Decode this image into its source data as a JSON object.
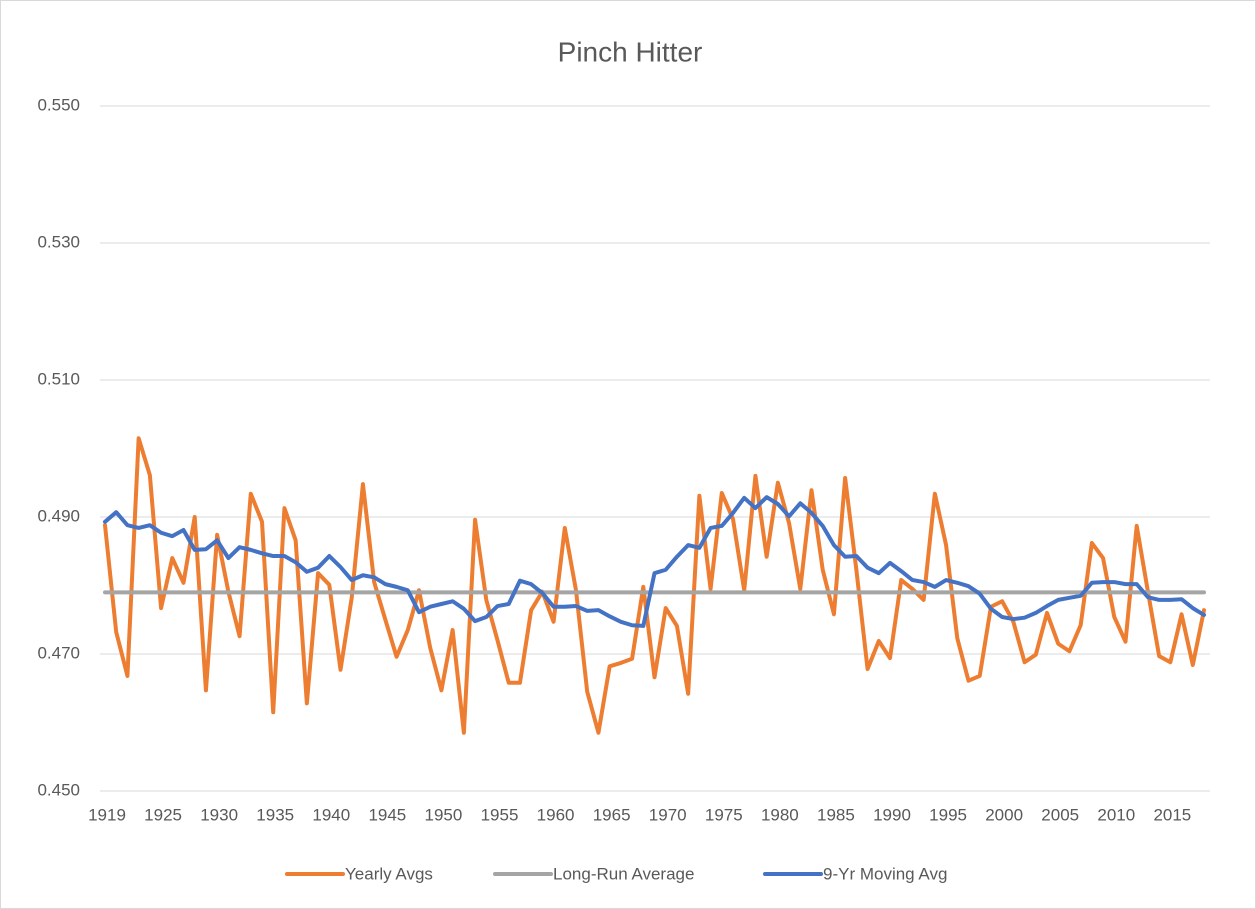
{
  "chart_data": {
    "type": "line",
    "title": "Pinch Hitter",
    "categories": [
      "1919",
      null,
      null,
      null,
      null,
      "1925",
      null,
      null,
      null,
      null,
      "1930",
      null,
      null,
      null,
      null,
      "1935",
      null,
      null,
      null,
      null,
      "1940",
      null,
      null,
      null,
      null,
      "1945",
      null,
      null,
      null,
      null,
      "1950",
      null,
      null,
      null,
      null,
      "1955",
      null,
      null,
      null,
      null,
      "1960",
      null,
      null,
      null,
      null,
      "1965",
      null,
      null,
      null,
      null,
      "1970",
      null,
      null,
      null,
      null,
      "1975",
      null,
      null,
      null,
      null,
      "1980",
      null,
      null,
      null,
      null,
      "1985",
      null,
      null,
      null,
      null,
      "1990",
      null,
      null,
      null,
      null,
      "1995",
      null,
      null,
      null,
      null,
      "2000",
      null,
      null,
      null,
      null,
      "2005",
      null,
      null,
      null,
      null,
      "2010",
      null,
      null,
      null,
      null,
      "2015",
      null,
      null,
      null
    ],
    "series": [
      {
        "name": "Yearly Avgs",
        "color": "#ed7d31",
        "values": [
          0.4888,
          0.4732,
          0.4668,
          0.5015,
          0.4961,
          0.4767,
          0.484,
          0.4804,
          0.49,
          0.4647,
          0.4874,
          0.4791,
          0.4726,
          0.4934,
          0.4893,
          0.4615,
          0.4913,
          0.4866,
          0.4628,
          0.4818,
          0.4801,
          0.4677,
          0.4782,
          0.4948,
          0.4805,
          0.475,
          0.4696,
          0.4735,
          0.4793,
          0.4709,
          0.4647,
          0.4735,
          0.4585,
          0.4896,
          0.4779,
          0.472,
          0.4658,
          0.4658,
          0.4764,
          0.4791,
          0.4747,
          0.4884,
          0.4793,
          0.4645,
          0.4585,
          0.4682,
          0.4687,
          0.4693,
          0.4798,
          0.4666,
          0.4767,
          0.4741,
          0.4642,
          0.4931,
          0.4795,
          0.4935,
          0.4897,
          0.4793,
          0.496,
          0.4842,
          0.495,
          0.4891,
          0.4795,
          0.4939,
          0.4823,
          0.4758,
          0.4957,
          0.4823,
          0.4678,
          0.4719,
          0.4694,
          0.4808,
          0.4795,
          0.4779,
          0.4934,
          0.4859,
          0.4723,
          0.4661,
          0.4668,
          0.4769,
          0.4777,
          0.4747,
          0.4688,
          0.4699,
          0.476,
          0.4715,
          0.4704,
          0.4742,
          0.4862,
          0.484,
          0.4754,
          0.4718,
          0.4887,
          0.4791,
          0.4697,
          0.4688,
          0.4758,
          0.4684,
          0.4764
        ]
      },
      {
        "name": "Long-Run Average",
        "color": "#a5a5a5",
        "values": [
          0.479,
          0.479,
          0.479,
          0.479,
          0.479,
          0.479,
          0.479,
          0.479,
          0.479,
          0.479,
          0.479,
          0.479,
          0.479,
          0.479,
          0.479,
          0.479,
          0.479,
          0.479,
          0.479,
          0.479,
          0.479,
          0.479,
          0.479,
          0.479,
          0.479,
          0.479,
          0.479,
          0.479,
          0.479,
          0.479,
          0.479,
          0.479,
          0.479,
          0.479,
          0.479,
          0.479,
          0.479,
          0.479,
          0.479,
          0.479,
          0.479,
          0.479,
          0.479,
          0.479,
          0.479,
          0.479,
          0.479,
          0.479,
          0.479,
          0.479,
          0.479,
          0.479,
          0.479,
          0.479,
          0.479,
          0.479,
          0.479,
          0.479,
          0.479,
          0.479,
          0.479,
          0.479,
          0.479,
          0.479,
          0.479,
          0.479,
          0.479,
          0.479,
          0.479,
          0.479,
          0.479,
          0.479,
          0.479,
          0.479,
          0.479,
          0.479,
          0.479,
          0.479,
          0.479,
          0.479,
          0.479,
          0.479,
          0.479,
          0.479,
          0.479,
          0.479,
          0.479,
          0.479,
          0.479,
          0.479,
          0.479,
          0.479,
          0.479,
          0.479,
          0.479,
          0.479,
          0.479,
          0.479,
          0.479
        ]
      },
      {
        "name": "9-Yr Moving Avg",
        "color": "#4472c4",
        "values": [
          0.4893,
          0.4907,
          0.4888,
          0.4884,
          0.4888,
          0.4877,
          0.4872,
          0.4881,
          0.4852,
          0.4853,
          0.4866,
          0.484,
          0.4856,
          0.4852,
          0.4847,
          0.4843,
          0.4843,
          0.4834,
          0.482,
          0.4826,
          0.4843,
          0.4827,
          0.4808,
          0.4815,
          0.4812,
          0.4802,
          0.4798,
          0.4793,
          0.4761,
          0.4769,
          0.4773,
          0.4777,
          0.4766,
          0.4748,
          0.4754,
          0.477,
          0.4773,
          0.4807,
          0.4802,
          0.4789,
          0.4769,
          0.4769,
          0.477,
          0.4763,
          0.4764,
          0.4755,
          0.4747,
          0.4742,
          0.4741,
          0.4818,
          0.4823,
          0.4842,
          0.4859,
          0.4855,
          0.4884,
          0.4887,
          0.4906,
          0.4928,
          0.4913,
          0.4929,
          0.4919,
          0.4901,
          0.492,
          0.4906,
          0.4887,
          0.4859,
          0.4842,
          0.4843,
          0.4826,
          0.4818,
          0.4833,
          0.4821,
          0.4808,
          0.4805,
          0.4798,
          0.4808,
          0.4804,
          0.4799,
          0.4788,
          0.4766,
          0.4754,
          0.4751,
          0.4753,
          0.476,
          0.477,
          0.4779,
          0.4782,
          0.4785,
          0.4804,
          0.4805,
          0.4805,
          0.4802,
          0.4802,
          0.4783,
          0.4779,
          0.4779,
          0.478,
          0.4767,
          0.4757
        ]
      }
    ],
    "ylim": [
      0.45,
      0.55
    ],
    "yticks": [
      {
        "value": 0.45,
        "label": "0.450"
      },
      {
        "value": 0.47,
        "label": "0.470"
      },
      {
        "value": 0.49,
        "label": "0.490"
      },
      {
        "value": 0.51,
        "label": "0.510"
      },
      {
        "value": 0.53,
        "label": "0.530"
      },
      {
        "value": 0.55,
        "label": "0.550"
      }
    ],
    "grid": true,
    "legend": "bottom"
  }
}
